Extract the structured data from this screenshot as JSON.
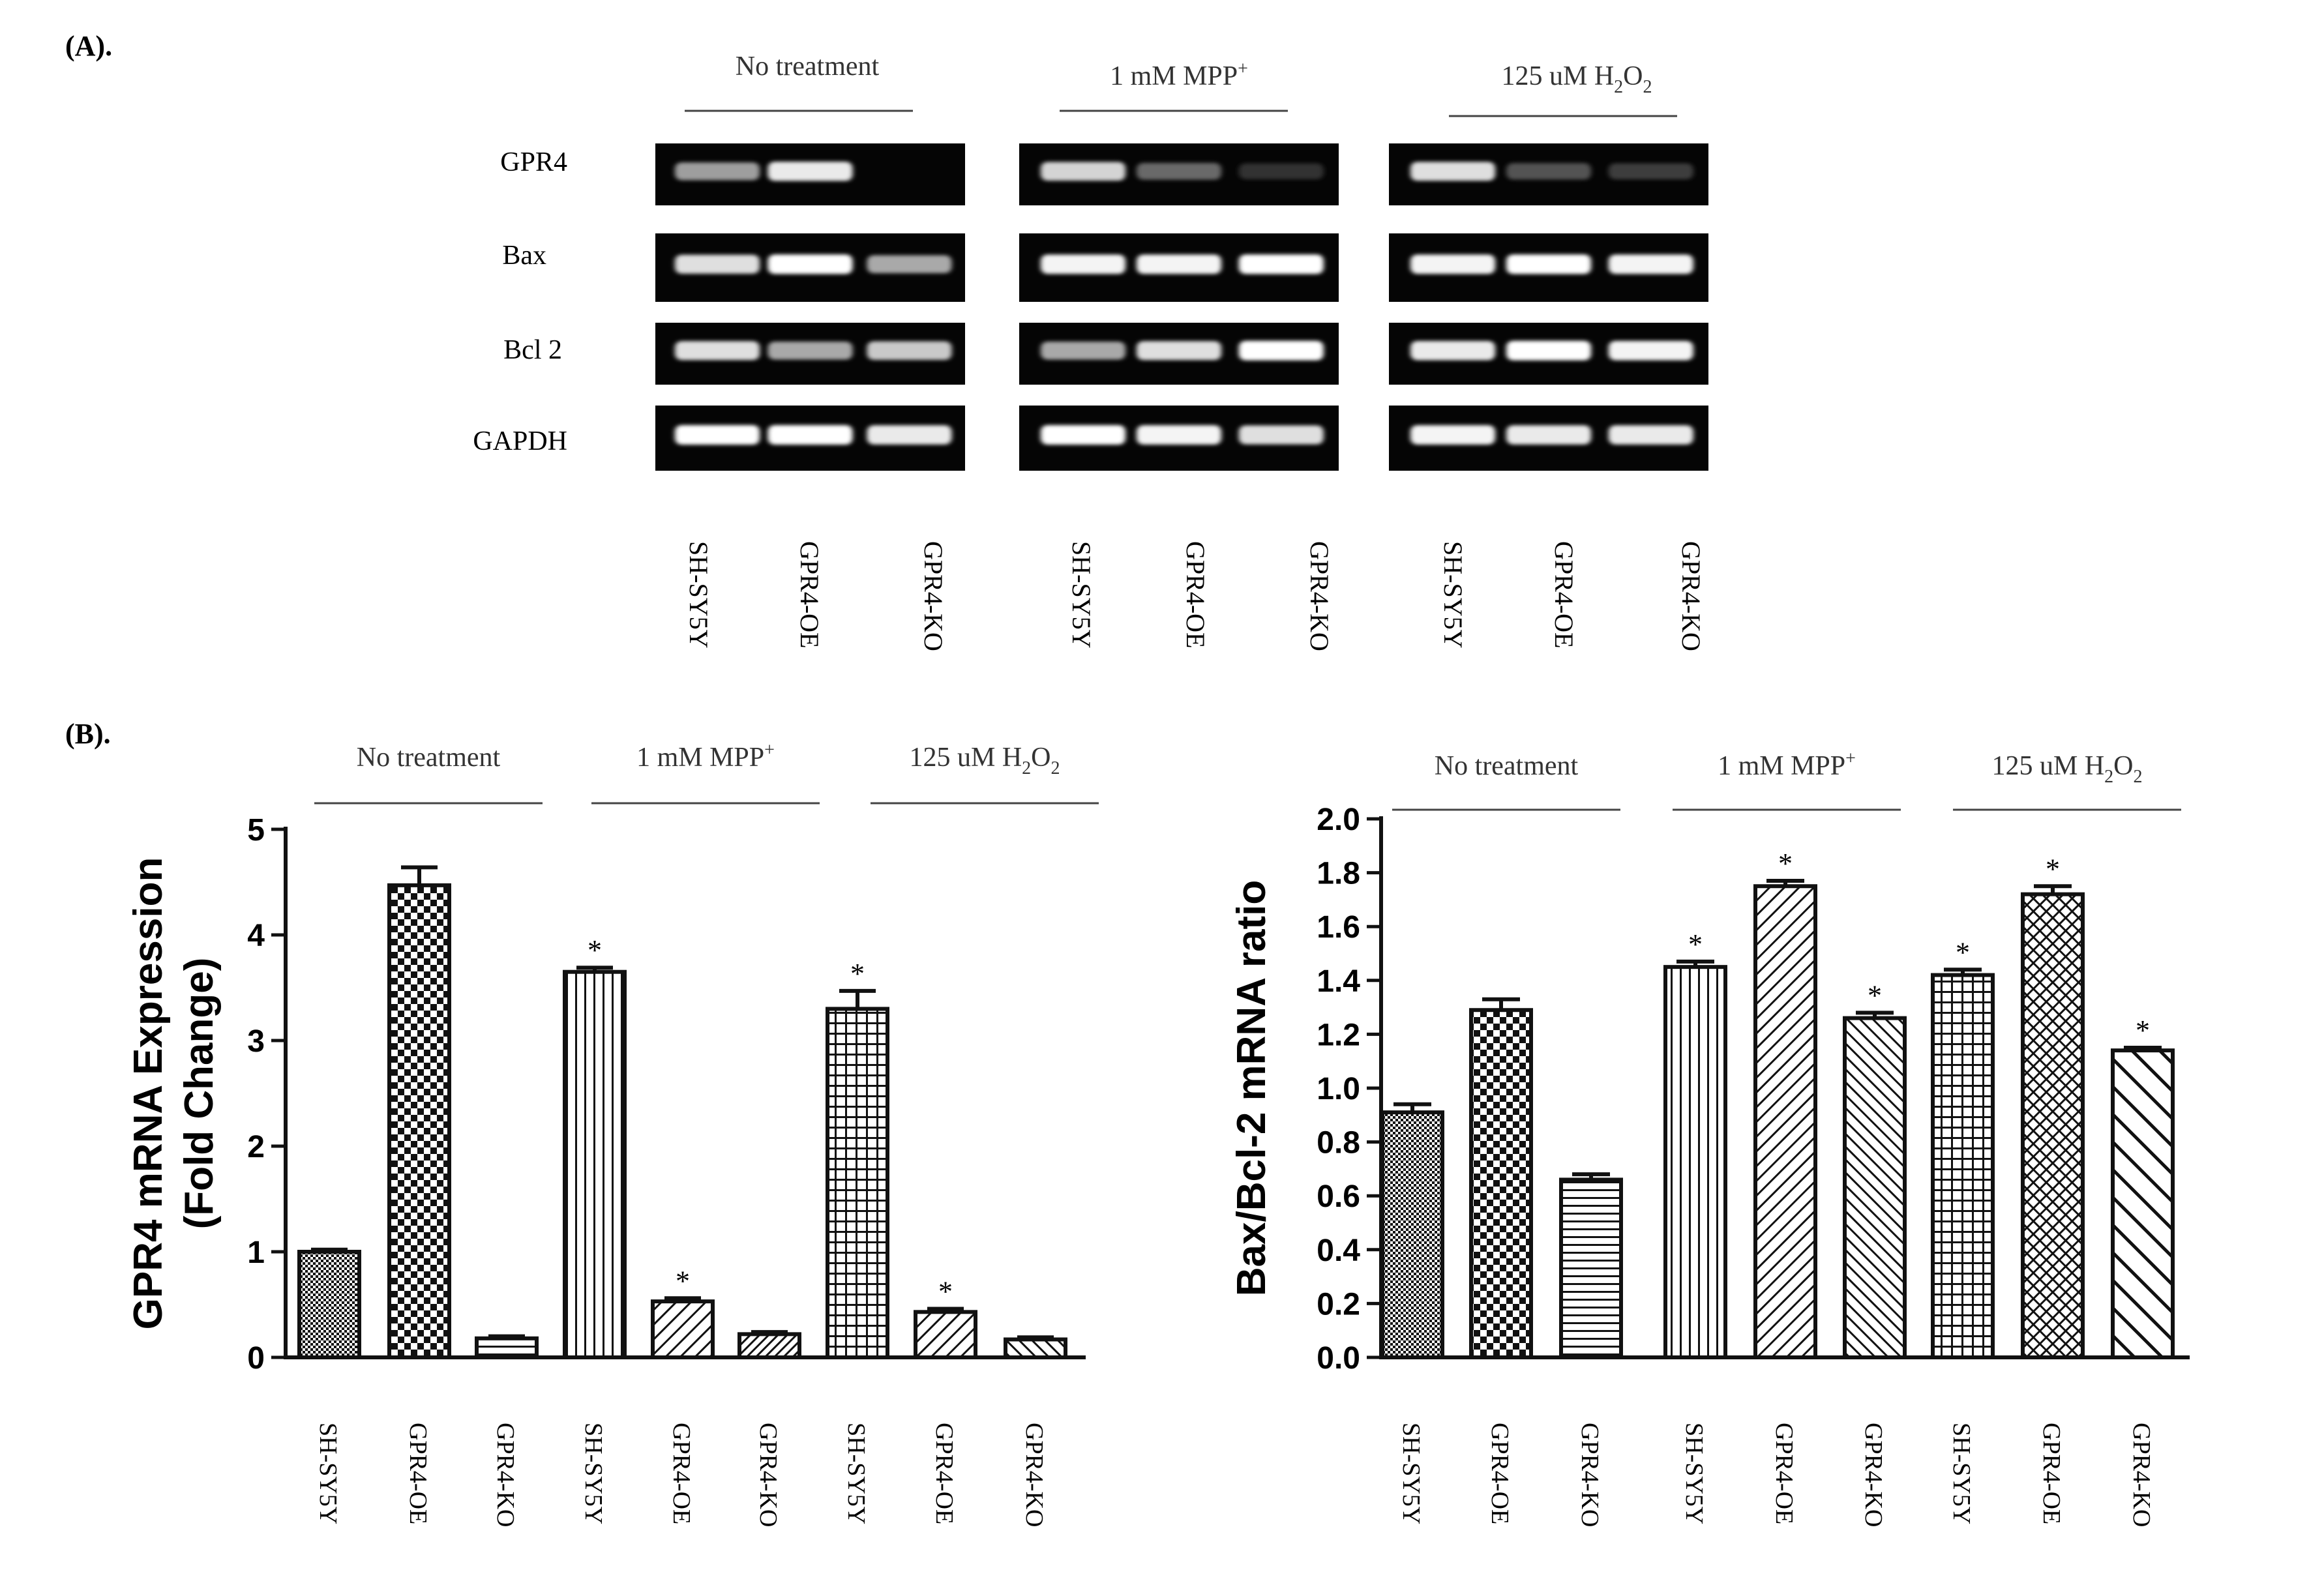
{
  "panel_labels": {
    "a": "(A).",
    "b": "(B)."
  },
  "gel": {
    "groups": [
      {
        "label": "No treatment"
      },
      {
        "label": "1 mM MPP+",
        "text": "1 mM MPP",
        "sup": "+"
      },
      {
        "label": "125 uM H2O2",
        "text": "125 uM H",
        "sub1": "2",
        "mid": "O",
        "sub2": "2"
      }
    ],
    "row_labels": [
      "GPR4",
      "Bax",
      "Bcl 2",
      "GAPDH"
    ],
    "lane_labels": [
      "SH-SY5Y",
      "GPR4-OE",
      "GPR4-KO",
      "SH-SY5Y",
      "GPR4-OE",
      "GPR4-KO",
      "SH-SY5Y",
      "GPR4-OE",
      "GPR4-KO"
    ],
    "band_intensity": [
      [
        0.55,
        0.9,
        0.0,
        0.8,
        0.3,
        0.05,
        0.85,
        0.2,
        0.1
      ],
      [
        0.85,
        1.0,
        0.6,
        0.95,
        0.95,
        1.0,
        0.95,
        1.0,
        0.95
      ],
      [
        0.85,
        0.6,
        0.75,
        0.6,
        0.85,
        1.0,
        0.9,
        1.0,
        0.95
      ],
      [
        1.0,
        1.0,
        0.9,
        1.0,
        0.95,
        0.85,
        0.95,
        0.9,
        0.9
      ]
    ]
  },
  "chart_data": [
    {
      "type": "bar",
      "title": "",
      "xlabel": "",
      "ylabel": "GPR4 mRNA Expression",
      "ylabel2": "(Fold Change)",
      "ylim": [
        0,
        5
      ],
      "yticks": [
        "0",
        "1",
        "2",
        "3",
        "4",
        "5"
      ],
      "groups": [
        {
          "label": "No treatment"
        },
        {
          "label": "1 mM MPP+",
          "text": "1 mM MPP",
          "sup": "+"
        },
        {
          "label": "125 uM H2O2",
          "text": "125 uM H",
          "sub1": "2",
          "mid": "O",
          "sub2": "2"
        }
      ],
      "categories": [
        "SH-SY5Y",
        "GPR4-OE",
        "GPR4-KO",
        "SH-SY5Y",
        "GPR4-OE",
        "GPR4-KO",
        "SH-SY5Y",
        "GPR4-OE",
        "GPR4-KO"
      ],
      "values": [
        1.0,
        4.47,
        0.18,
        3.65,
        0.53,
        0.22,
        3.3,
        0.43,
        0.17
      ],
      "errors": [
        0.02,
        0.17,
        0.02,
        0.04,
        0.03,
        0.02,
        0.17,
        0.03,
        0.02
      ],
      "significance": [
        "",
        "",
        "",
        "*",
        "*",
        "",
        "*",
        "*",
        ""
      ],
      "patterns": [
        "dots",
        "checker",
        "hlines",
        "vlines",
        "diag",
        "diag-fine",
        "grid",
        "diag",
        "diag-back"
      ]
    },
    {
      "type": "bar",
      "title": "",
      "xlabel": "",
      "ylabel": "Bax/Bcl-2 mRNA ratio",
      "ylim": [
        0,
        2.0
      ],
      "yticks": [
        "0.0",
        "0.2",
        "0.4",
        "0.6",
        "0.8",
        "1.0",
        "1.2",
        "1.4",
        "1.6",
        "1.8",
        "2.0"
      ],
      "groups": [
        {
          "label": "No treatment"
        },
        {
          "label": "1 mM MPP+",
          "text": "1 mM MPP",
          "sup": "+"
        },
        {
          "label": "125 uM H2O2",
          "text": "125 uM H",
          "sub1": "2",
          "mid": "O",
          "sub2": "2"
        }
      ],
      "categories": [
        "SH-SY5Y",
        "GPR4-OE",
        "GPR4-KO",
        "SH-SY5Y",
        "GPR4-OE",
        "GPR4-KO",
        "SH-SY5Y",
        "GPR4-OE",
        "GPR4-KO"
      ],
      "values": [
        0.91,
        1.29,
        0.66,
        1.45,
        1.75,
        1.26,
        1.42,
        1.72,
        1.14
      ],
      "errors": [
        0.03,
        0.04,
        0.02,
        0.02,
        0.02,
        0.02,
        0.02,
        0.03,
        0.01
      ],
      "significance": [
        "",
        "",
        "",
        "*",
        "*",
        "*",
        "*",
        "*",
        "*"
      ],
      "patterns": [
        "dots",
        "checker",
        "hlines",
        "vlines",
        "diag",
        "diag-back",
        "grid",
        "crosshatch",
        "diag-back-wide"
      ]
    }
  ]
}
